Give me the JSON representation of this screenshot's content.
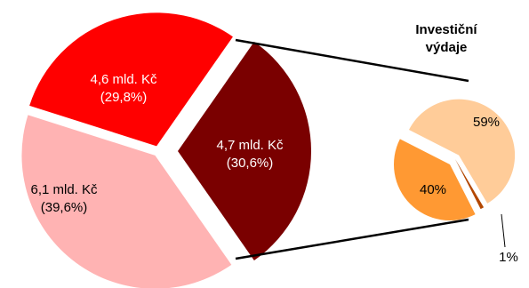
{
  "chart_data": [
    {
      "type": "pie",
      "title": "",
      "slices": [
        {
          "label_line1": "4,6 mld. Kč",
          "label_line2": "(29,8%)",
          "value": 29.8,
          "color": "#ff0000"
        },
        {
          "label_line1": "4,7 mld. Kč",
          "label_line2": "(30,6%)",
          "value": 30.6,
          "color": "#7a0000"
        },
        {
          "label_line1": "6,1 mld. Kč",
          "label_line2": "(39,6%)",
          "value": 39.6,
          "color": "#ffb3b3"
        }
      ]
    },
    {
      "type": "pie",
      "title_line1": "Investiční",
      "title_line2": "výdaje",
      "slices": [
        {
          "label": "59%",
          "value": 59,
          "color": "#ffcc99"
        },
        {
          "label": "1%",
          "value": 1,
          "color": "#b34700"
        },
        {
          "label": "40%",
          "value": 40,
          "color": "#ff9933"
        }
      ]
    }
  ]
}
